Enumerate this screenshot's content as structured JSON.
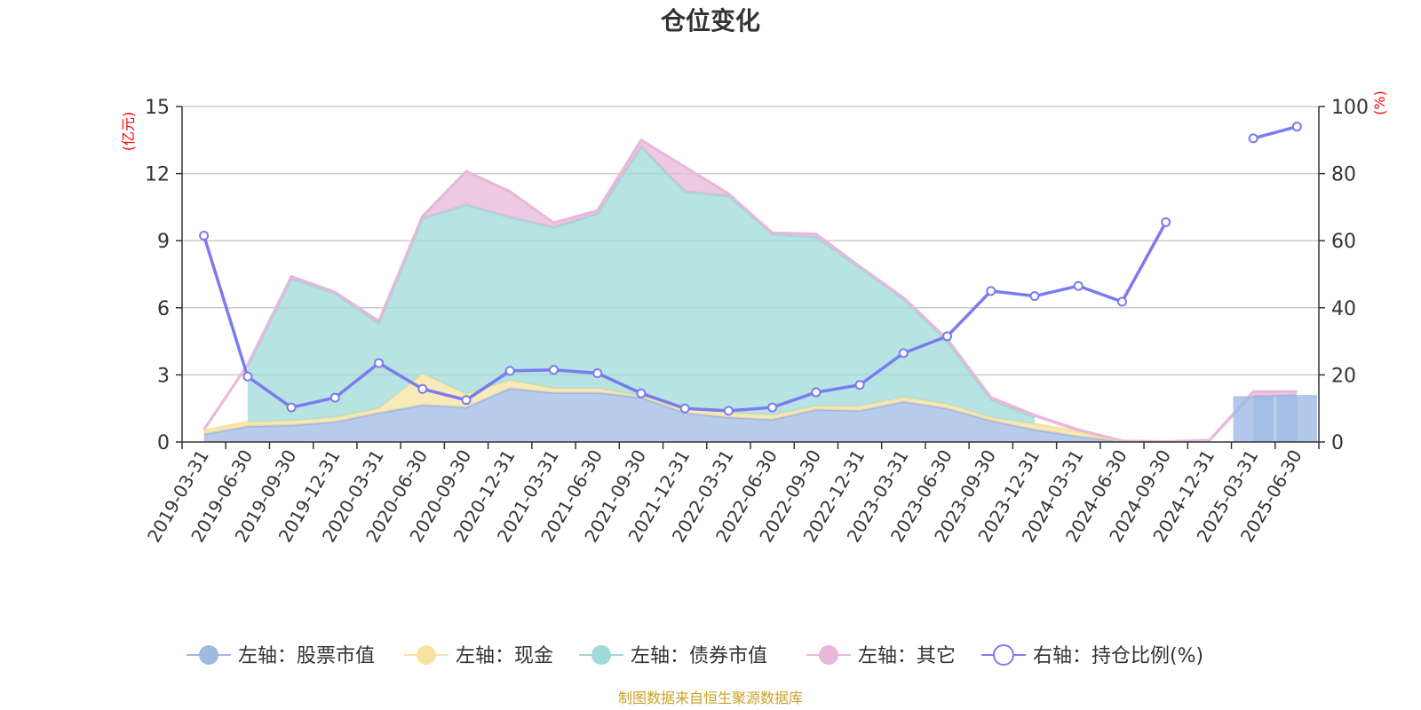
{
  "chart_data": {
    "type": "area",
    "title": "仓位变化",
    "source": "制图数据来自恒生聚源数据库",
    "left_unit": "(亿元)",
    "right_unit": "(%)",
    "left_axis": {
      "min": 0,
      "max": 15,
      "ticks": [
        0,
        3,
        6,
        9,
        12,
        15
      ]
    },
    "right_axis": {
      "min": 0,
      "max": 100,
      "ticks": [
        0,
        20,
        40,
        60,
        80,
        100
      ]
    },
    "categories": [
      "2019-03-31",
      "2019-06-30",
      "2019-09-30",
      "2019-12-31",
      "2020-03-31",
      "2020-06-30",
      "2020-09-30",
      "2020-12-31",
      "2021-03-31",
      "2021-06-30",
      "2021-09-30",
      "2021-12-31",
      "2022-03-31",
      "2022-06-30",
      "2022-09-30",
      "2022-12-31",
      "2023-03-31",
      "2023-06-30",
      "2023-09-30",
      "2023-12-31",
      "2024-03-31",
      "2024-06-30",
      "2024-09-30",
      "2024-12-31",
      "2025-03-31",
      "2025-06-30"
    ],
    "stacked_series": [
      {
        "name": "左轴：股票市值",
        "color": "#9fb9e3",
        "values": [
          0.35,
          0.7,
          0.75,
          0.9,
          1.3,
          1.65,
          1.55,
          2.4,
          2.2,
          2.2,
          2.0,
          1.3,
          1.1,
          1.0,
          1.45,
          1.4,
          1.8,
          1.5,
          0.95,
          0.55,
          0.25,
          0.02,
          0.0,
          0.0,
          2.05,
          2.1
        ]
      },
      {
        "name": "左轴：现金",
        "color": "#f7e3a1",
        "values": [
          0.15,
          0.2,
          0.2,
          0.2,
          0.2,
          1.4,
          0.6,
          0.35,
          0.2,
          0.2,
          0.05,
          0.2,
          0.2,
          0.2,
          0.15,
          0.2,
          0.2,
          0.2,
          0.15,
          0.25,
          0.2,
          0.02,
          0.0,
          0.0,
          0.0,
          0.0
        ]
      },
      {
        "name": "左轴：债券市值",
        "color": "#9fd9d9",
        "values": [
          0.0,
          2.5,
          6.35,
          5.55,
          3.8,
          6.95,
          8.45,
          7.3,
          7.2,
          7.8,
          11.15,
          9.7,
          9.7,
          8.1,
          7.55,
          6.2,
          4.4,
          2.8,
          0.8,
          0.3,
          0.0,
          0.0,
          0.0,
          0.0,
          0.0,
          0.0
        ]
      },
      {
        "name": "左轴：其它",
        "color": "#e8b7d9",
        "values": [
          0.05,
          0.05,
          0.1,
          0.05,
          0.1,
          0.1,
          1.5,
          1.15,
          0.2,
          0.15,
          0.3,
          1.1,
          0.1,
          0.05,
          0.15,
          0.05,
          0.05,
          0.1,
          0.1,
          0.1,
          0.1,
          0.01,
          0.02,
          0.08,
          0.2,
          0.15
        ]
      }
    ],
    "line_series": {
      "name": "右轴：持仓比例(%)",
      "color": "#7b7bef",
      "values": [
        61.5,
        19.5,
        10.3,
        13.2,
        23.5,
        15.8,
        12.5,
        21.2,
        21.5,
        20.5,
        14.5,
        10.0,
        9.3,
        10.3,
        14.8,
        17.0,
        26.5,
        31.5,
        45.0,
        43.5,
        46.5,
        41.8,
        65.5,
        null,
        90.5,
        94.0
      ]
    },
    "legend": [
      "左轴：股票市值",
      "左轴：现金",
      "左轴：债券市值",
      "左轴：其它",
      "右轴：持仓比例(%)"
    ],
    "legend_position": "bottom",
    "grid": true
  }
}
